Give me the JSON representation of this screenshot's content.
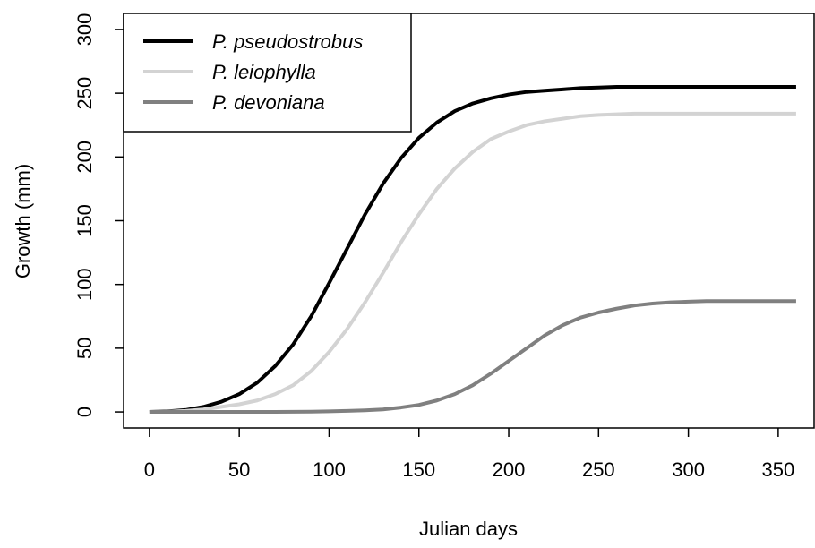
{
  "chart_data": {
    "type": "line",
    "x_label": "Julian days",
    "y_label": "Growth (mm)",
    "x": [
      0,
      10,
      20,
      30,
      40,
      50,
      60,
      70,
      80,
      90,
      100,
      110,
      120,
      130,
      140,
      150,
      160,
      170,
      180,
      190,
      200,
      210,
      220,
      230,
      240,
      250,
      260,
      270,
      280,
      290,
      300,
      310,
      320,
      330,
      340,
      350,
      360
    ],
    "series": [
      {
        "name": "P. pseudostrobus",
        "color": "#000000",
        "values": [
          0,
          0.5,
          1.5,
          4,
          8,
          14,
          23,
          36,
          53,
          75,
          101,
          128,
          155,
          179,
          199,
          215,
          227,
          236,
          242,
          246,
          249,
          251,
          252,
          253,
          254,
          254.5,
          255,
          255,
          255,
          255,
          255,
          255,
          255,
          255,
          255,
          255,
          255
        ]
      },
      {
        "name": "P. leiophylla",
        "color": "#d3d3d3",
        "values": [
          0,
          0.2,
          0.8,
          2,
          4,
          6,
          9,
          14,
          21,
          32,
          47,
          65,
          86,
          109,
          133,
          155,
          175,
          191,
          204,
          214,
          220,
          225,
          228,
          230,
          232,
          233,
          233.5,
          234,
          234,
          234,
          234,
          234,
          234,
          234,
          234,
          234,
          234
        ]
      },
      {
        "name": "P. devoniana",
        "color": "#808080",
        "values": [
          0,
          0,
          0,
          0,
          0,
          0,
          0,
          0,
          0.1,
          0.2,
          0.5,
          0.8,
          1.3,
          2,
          3.5,
          5.5,
          9,
          14,
          21,
          30,
          40,
          50,
          60,
          68,
          74,
          78,
          81,
          83.5,
          85,
          86,
          86.5,
          87,
          87,
          87,
          87,
          87,
          87
        ]
      }
    ],
    "xlim": [
      -14.4,
      370
    ],
    "ylim": [
      -12.6,
      312.6
    ],
    "xticks": [
      0,
      50,
      100,
      150,
      200,
      250,
      300,
      350
    ],
    "yticks": [
      0,
      50,
      100,
      150,
      200,
      250,
      300
    ],
    "legend": "top-left"
  }
}
